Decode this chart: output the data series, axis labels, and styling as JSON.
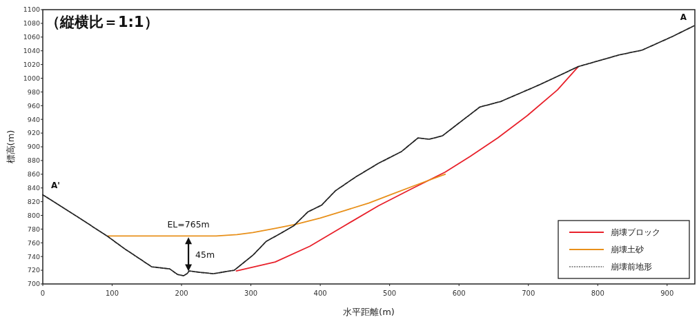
{
  "chart_data": {
    "type": "line",
    "title": "（縦横比＝1:1）",
    "xlabel": "水平距離(m)",
    "ylabel": "標高(m)",
    "xlim": [
      0,
      940
    ],
    "xticks": [
      0,
      100,
      200,
      300,
      400,
      500,
      600,
      700,
      800,
      900
    ],
    "ylim": [
      700,
      1100
    ],
    "yticks": [
      700,
      720,
      740,
      760,
      780,
      800,
      820,
      840,
      860,
      880,
      900,
      920,
      940,
      960,
      980,
      1000,
      1020,
      1040,
      1060,
      1080,
      1100
    ],
    "grid": false,
    "legend": "bottom right",
    "marker": "none",
    "series": [
      {
        "name": "崩壊ブロック",
        "color": "#e8202a",
        "x": [
          279,
          335,
          385,
          435,
          484,
          534,
          580,
          616,
          656,
          699,
          742,
          772
        ],
        "values": [
          719,
          732,
          755,
          785,
          814,
          840,
          863,
          886,
          913,
          946,
          983,
          1017
        ]
      },
      {
        "name": "崩壊土砂",
        "color": "#e8901a",
        "x": [
          94,
          150,
          200,
          250,
          280,
          303,
          335,
          365,
          400,
          435,
          470,
          501,
          540,
          580
        ],
        "values": [
          770,
          770,
          770,
          770,
          772,
          775,
          781,
          787,
          796,
          807,
          818,
          830,
          845,
          860
        ]
      },
      {
        "name": "崩壊前地形",
        "color": "#222222",
        "line_style": "dashed",
        "x": [
          0,
          50,
          94,
          117,
          157,
          183,
          194,
          203,
          208,
          211,
          226,
          246,
          276,
          303,
          322,
          345,
          362,
          382,
          402,
          422,
          451,
          484,
          517,
          541,
          557,
          576,
          630,
          660,
          715,
          772,
          831,
          864,
          908,
          940
        ],
        "values": [
          830,
          798,
          769,
          752,
          725,
          722,
          714,
          712,
          715,
          719,
          717,
          715,
          720,
          742,
          762,
          775,
          785,
          805,
          815,
          836,
          856,
          876,
          893,
          913,
          911,
          916,
          958,
          966,
          990,
          1017,
          1034,
          1041,
          1061,
          1077
        ]
      }
    ],
    "annotations": [
      {
        "text": "A'",
        "x": 0,
        "y": 830
      },
      {
        "text": "A",
        "x": 940,
        "y": 1077
      },
      {
        "text": "EL=765m",
        "x": 210,
        "y": 770
      },
      "45m"
    ]
  }
}
